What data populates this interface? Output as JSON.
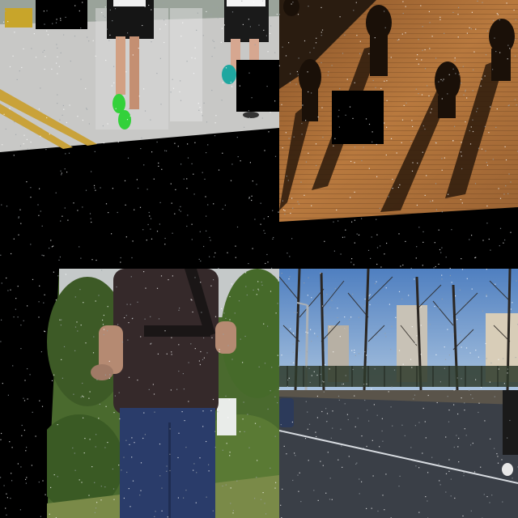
{
  "collage": {
    "background": "#000000",
    "tiles": [
      {
        "id": "tl",
        "scene": "runners-on-road",
        "palette": [
          "#c9c9c9",
          "#e8c23a",
          "#2ec43a",
          "#1a1a1a"
        ]
      },
      {
        "id": "tr",
        "scene": "pedestrians-shadows-brick",
        "palette": [
          "#b0703a",
          "#5a3418",
          "#1a1108"
        ]
      },
      {
        "id": "bl",
        "scene": "man-jogging-park",
        "palette": [
          "#3a2f2c",
          "#2a3c6a",
          "#4b6a2d"
        ]
      },
      {
        "id": "br",
        "scene": "city-street-bare-trees",
        "palette": [
          "#6f9ccc",
          "#3a4a5f",
          "#2a2a2a"
        ]
      }
    ],
    "occluders": 4
  }
}
